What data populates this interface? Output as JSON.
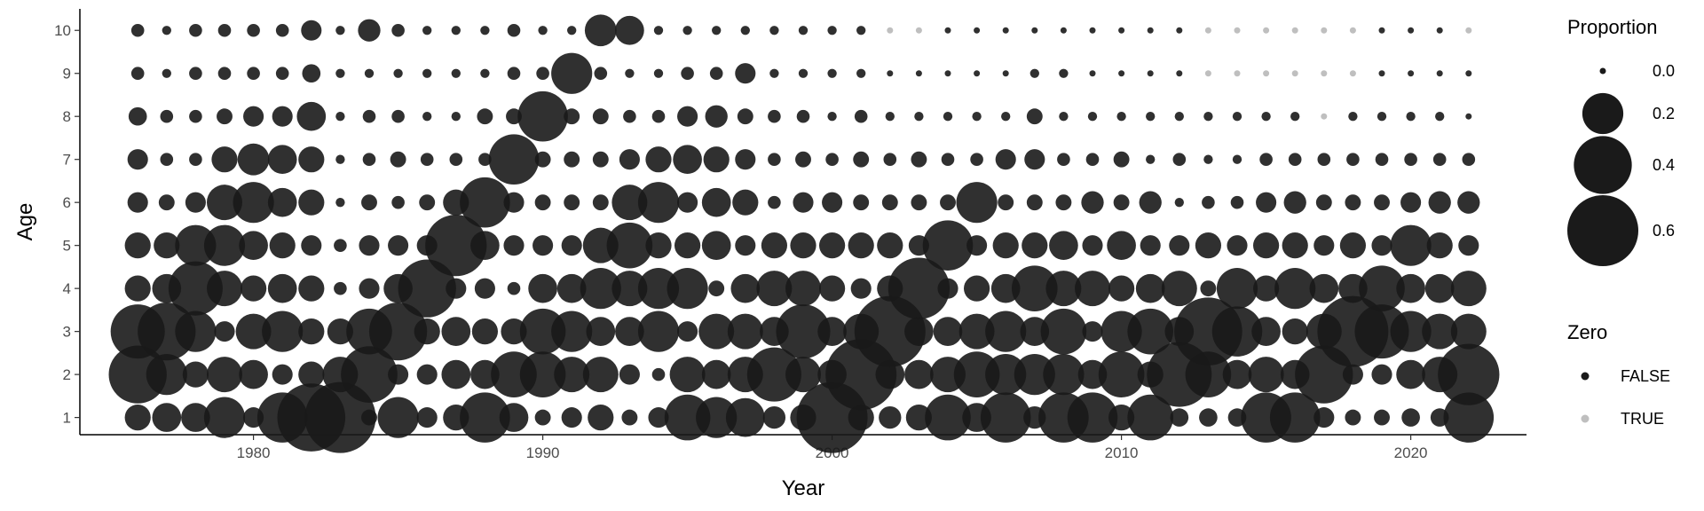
{
  "chart_data": {
    "type": "scatter",
    "xlabel": "Year",
    "ylabel": "Age",
    "xlim": [
      1974,
      2024
    ],
    "ylim": [
      0.6,
      10.5
    ],
    "x_ticks": [
      1980,
      1990,
      2000,
      2010,
      2020
    ],
    "y_ticks": [
      1,
      2,
      3,
      4,
      5,
      6,
      7,
      8,
      9,
      10
    ],
    "grid": false,
    "years": [
      1976,
      1977,
      1978,
      1979,
      1980,
      1981,
      1982,
      1983,
      1984,
      1985,
      1986,
      1987,
      1988,
      1989,
      1990,
      1991,
      1992,
      1993,
      1994,
      1995,
      1996,
      1997,
      1998,
      1999,
      2000,
      2001,
      2002,
      2003,
      2004,
      2005,
      2006,
      2007,
      2008,
      2009,
      2010,
      2011,
      2012,
      2013,
      2014,
      2015,
      2016,
      2017,
      2018,
      2019,
      2020,
      2021,
      2022
    ],
    "ages": [
      1,
      2,
      3,
      4,
      5,
      6,
      7,
      8,
      9,
      10
    ],
    "proportions": [
      [
        0.08,
        0.1,
        0.1,
        0.2,
        0.05,
        0.3,
        0.55,
        0.6,
        0.03,
        0.2,
        0.05,
        0.08,
        0.3,
        0.1,
        0.03,
        0.05,
        0.08,
        0.03,
        0.05,
        0.25,
        0.2,
        0.18,
        0.06,
        0.08,
        0.6,
        0.08,
        0.06,
        0.08,
        0.25,
        0.1,
        0.3,
        0.06,
        0.3,
        0.3,
        0.08,
        0.25,
        0.04,
        0.04,
        0.04,
        0.3,
        0.3,
        0.05,
        0.03,
        0.03,
        0.04,
        0.04,
        0.3
      ],
      [
        0.4,
        0.2,
        0.08,
        0.15,
        0.1,
        0.05,
        0.08,
        0.15,
        0.38,
        0.05,
        0.05,
        0.1,
        0.1,
        0.25,
        0.25,
        0.15,
        0.15,
        0.05,
        0.02,
        0.15,
        0.1,
        0.15,
        0.35,
        0.15,
        0.1,
        0.6,
        0.1,
        0.1,
        0.15,
        0.25,
        0.2,
        0.2,
        0.2,
        0.1,
        0.25,
        0.08,
        0.5,
        0.25,
        0.1,
        0.15,
        0.1,
        0.4,
        0.05,
        0.05,
        0.1,
        0.15,
        0.45
      ],
      [
        0.35,
        0.4,
        0.2,
        0.05,
        0.15,
        0.2,
        0.08,
        0.08,
        0.25,
        0.4,
        0.08,
        0.1,
        0.08,
        0.08,
        0.25,
        0.2,
        0.1,
        0.1,
        0.2,
        0.05,
        0.15,
        0.15,
        0.1,
        0.35,
        0.1,
        0.15,
        0.6,
        0.1,
        0.1,
        0.15,
        0.2,
        0.1,
        0.25,
        0.05,
        0.2,
        0.25,
        0.1,
        0.55,
        0.3,
        0.1,
        0.08,
        0.15,
        0.6,
        0.35,
        0.2,
        0.15,
        0.15
      ],
      [
        0.08,
        0.1,
        0.35,
        0.15,
        0.08,
        0.1,
        0.08,
        0.02,
        0.05,
        0.1,
        0.4,
        0.05,
        0.05,
        0.02,
        0.1,
        0.1,
        0.2,
        0.15,
        0.2,
        0.2,
        0.03,
        0.1,
        0.15,
        0.15,
        0.08,
        0.05,
        0.08,
        0.45,
        0.05,
        0.08,
        0.1,
        0.25,
        0.15,
        0.15,
        0.08,
        0.1,
        0.15,
        0.03,
        0.2,
        0.08,
        0.2,
        0.1,
        0.1,
        0.25,
        0.1,
        0.1,
        0.15
      ],
      [
        0.08,
        0.08,
        0.2,
        0.2,
        0.1,
        0.08,
        0.05,
        0.02,
        0.05,
        0.05,
        0.05,
        0.45,
        0.1,
        0.05,
        0.05,
        0.05,
        0.15,
        0.25,
        0.08,
        0.08,
        0.1,
        0.05,
        0.08,
        0.08,
        0.08,
        0.08,
        0.08,
        0.05,
        0.3,
        0.05,
        0.08,
        0.08,
        0.1,
        0.05,
        0.1,
        0.05,
        0.05,
        0.08,
        0.05,
        0.08,
        0.08,
        0.05,
        0.08,
        0.05,
        0.2,
        0.08,
        0.05
      ],
      [
        0.05,
        0.03,
        0.05,
        0.15,
        0.2,
        0.1,
        0.08,
        0.01,
        0.03,
        0.02,
        0.03,
        0.08,
        0.3,
        0.05,
        0.03,
        0.03,
        0.03,
        0.15,
        0.2,
        0.05,
        0.1,
        0.08,
        0.02,
        0.05,
        0.05,
        0.03,
        0.03,
        0.03,
        0.03,
        0.2,
        0.03,
        0.03,
        0.03,
        0.06,
        0.03,
        0.06,
        0.01,
        0.02,
        0.02,
        0.05,
        0.06,
        0.03,
        0.03,
        0.03,
        0.05,
        0.06,
        0.06
      ],
      [
        0.05,
        0.02,
        0.02,
        0.08,
        0.12,
        0.1,
        0.08,
        0.01,
        0.02,
        0.03,
        0.02,
        0.02,
        0.02,
        0.3,
        0.03,
        0.03,
        0.03,
        0.05,
        0.08,
        0.1,
        0.08,
        0.05,
        0.02,
        0.03,
        0.02,
        0.03,
        0.02,
        0.03,
        0.02,
        0.02,
        0.05,
        0.05,
        0.02,
        0.02,
        0.03,
        0.01,
        0.02,
        0.01,
        0.01,
        0.02,
        0.02,
        0.02,
        0.02,
        0.02,
        0.02,
        0.02,
        0.02
      ],
      [
        0.04,
        0.02,
        0.02,
        0.03,
        0.05,
        0.05,
        0.1,
        0.01,
        0.02,
        0.02,
        0.01,
        0.01,
        0.03,
        0.03,
        0.3,
        0.03,
        0.03,
        0.02,
        0.02,
        0.05,
        0.06,
        0.03,
        0.02,
        0.02,
        0.01,
        0.02,
        0.01,
        0.01,
        0.01,
        0.01,
        0.01,
        0.03,
        0.01,
        0.01,
        0.01,
        0.01,
        0.01,
        0.01,
        0.01,
        0.01,
        0.01,
        0.0,
        0.01,
        0.01,
        0.01,
        0.01,
        0.0
      ],
      [
        0.02,
        0.01,
        0.02,
        0.02,
        0.02,
        0.02,
        0.04,
        0.01,
        0.01,
        0.01,
        0.01,
        0.01,
        0.01,
        0.02,
        0.02,
        0.2,
        0.02,
        0.01,
        0.01,
        0.02,
        0.02,
        0.05,
        0.01,
        0.01,
        0.01,
        0.01,
        0.0,
        0.0,
        0.0,
        0.0,
        0.0,
        0.01,
        0.01,
        0.0,
        0.0,
        0.0,
        0.0,
        0.0,
        0.0,
        0.0,
        0.0,
        0.0,
        0.0,
        0.0,
        0.0,
        0.0,
        0.0
      ],
      [
        0.02,
        0.01,
        0.02,
        0.02,
        0.02,
        0.02,
        0.05,
        0.01,
        0.06,
        0.02,
        0.01,
        0.01,
        0.01,
        0.02,
        0.01,
        0.01,
        0.12,
        0.1,
        0.01,
        0.01,
        0.01,
        0.01,
        0.01,
        0.01,
        0.01,
        0.01,
        0.0,
        0.0,
        0.0,
        0.0,
        0.0,
        0.0,
        0.0,
        0.0,
        0.0,
        0.0,
        0.0,
        0.0,
        0.0,
        0.0,
        0.0,
        0.0,
        0.0,
        0.0,
        0.0,
        0.0,
        0.0
      ]
    ],
    "zero": [
      [
        false,
        false,
        false,
        false,
        false,
        false,
        false,
        false,
        false,
        false,
        false,
        false,
        false,
        false,
        false,
        false,
        false,
        false,
        false,
        false,
        false,
        false,
        false,
        false,
        false,
        false,
        false,
        false,
        false,
        false,
        false,
        false,
        false,
        false,
        false,
        false,
        false,
        false,
        false,
        false,
        false,
        false,
        false,
        false,
        false,
        false,
        false
      ],
      [
        false,
        false,
        false,
        false,
        false,
        false,
        false,
        false,
        false,
        false,
        false,
        false,
        false,
        false,
        false,
        false,
        false,
        false,
        false,
        false,
        false,
        false,
        false,
        false,
        false,
        false,
        false,
        false,
        false,
        false,
        false,
        false,
        false,
        false,
        false,
        false,
        false,
        false,
        false,
        false,
        false,
        false,
        false,
        false,
        false,
        false,
        false
      ],
      [
        false,
        false,
        false,
        false,
        false,
        false,
        false,
        false,
        false,
        false,
        false,
        false,
        false,
        false,
        false,
        false,
        false,
        false,
        false,
        false,
        false,
        false,
        false,
        false,
        false,
        false,
        false,
        false,
        false,
        false,
        false,
        false,
        false,
        false,
        false,
        false,
        false,
        false,
        false,
        false,
        false,
        false,
        false,
        false,
        false,
        false,
        false
      ],
      [
        false,
        false,
        false,
        false,
        false,
        false,
        false,
        false,
        false,
        false,
        false,
        false,
        false,
        false,
        false,
        false,
        false,
        false,
        false,
        false,
        false,
        false,
        false,
        false,
        false,
        false,
        false,
        false,
        false,
        false,
        false,
        false,
        false,
        false,
        false,
        false,
        false,
        false,
        false,
        false,
        false,
        false,
        false,
        false,
        false,
        false,
        false
      ],
      [
        false,
        false,
        false,
        false,
        false,
        false,
        false,
        false,
        false,
        false,
        false,
        false,
        false,
        false,
        false,
        false,
        false,
        false,
        false,
        false,
        false,
        false,
        false,
        false,
        false,
        false,
        false,
        false,
        false,
        false,
        false,
        false,
        false,
        false,
        false,
        false,
        false,
        false,
        false,
        false,
        false,
        false,
        false,
        false,
        false,
        false,
        false
      ],
      [
        false,
        false,
        false,
        false,
        false,
        false,
        false,
        false,
        false,
        false,
        false,
        false,
        false,
        false,
        false,
        false,
        false,
        false,
        false,
        false,
        false,
        false,
        false,
        false,
        false,
        false,
        false,
        false,
        false,
        false,
        false,
        false,
        false,
        false,
        false,
        false,
        false,
        false,
        false,
        false,
        false,
        false,
        false,
        false,
        false,
        false,
        false
      ],
      [
        false,
        false,
        false,
        false,
        false,
        false,
        false,
        false,
        false,
        false,
        false,
        false,
        false,
        false,
        false,
        false,
        false,
        false,
        false,
        false,
        false,
        false,
        false,
        false,
        false,
        false,
        false,
        false,
        false,
        false,
        false,
        false,
        false,
        false,
        false,
        false,
        false,
        false,
        false,
        false,
        false,
        false,
        false,
        false,
        false,
        false,
        false
      ],
      [
        false,
        false,
        false,
        false,
        false,
        false,
        false,
        false,
        false,
        false,
        false,
        false,
        false,
        false,
        false,
        false,
        false,
        false,
        false,
        false,
        false,
        false,
        false,
        false,
        false,
        false,
        false,
        false,
        false,
        false,
        false,
        false,
        false,
        false,
        false,
        false,
        false,
        false,
        false,
        false,
        false,
        true,
        false,
        false,
        false,
        false,
        false
      ],
      [
        false,
        false,
        false,
        false,
        false,
        false,
        false,
        false,
        false,
        false,
        false,
        false,
        false,
        false,
        false,
        false,
        false,
        false,
        false,
        false,
        false,
        false,
        false,
        false,
        false,
        false,
        false,
        false,
        false,
        false,
        false,
        false,
        false,
        false,
        false,
        false,
        false,
        true,
        true,
        true,
        true,
        true,
        true,
        false,
        false,
        false,
        false
      ],
      [
        false,
        false,
        false,
        false,
        false,
        false,
        false,
        false,
        false,
        false,
        false,
        false,
        false,
        false,
        false,
        false,
        false,
        false,
        false,
        false,
        false,
        false,
        false,
        false,
        false,
        false,
        true,
        true,
        false,
        false,
        false,
        false,
        false,
        false,
        false,
        false,
        false,
        true,
        true,
        true,
        true,
        true,
        true,
        false,
        false,
        false,
        true
      ]
    ],
    "legend": {
      "position": "right",
      "size_title": "Proportion",
      "size_breaks": [
        0.0,
        0.2,
        0.4,
        0.6
      ],
      "size_labels": [
        "0.0",
        "0.2",
        "0.4",
        "0.6"
      ],
      "color_title": "Zero",
      "color_items": [
        {
          "label": "FALSE",
          "color": "#1a1a1a"
        },
        {
          "label": "TRUE",
          "color": "#bfbfbf"
        }
      ]
    },
    "colors": {
      "false_point": "#1a1a1a",
      "true_point": "#bfbfbf",
      "axis": "#000000"
    }
  }
}
